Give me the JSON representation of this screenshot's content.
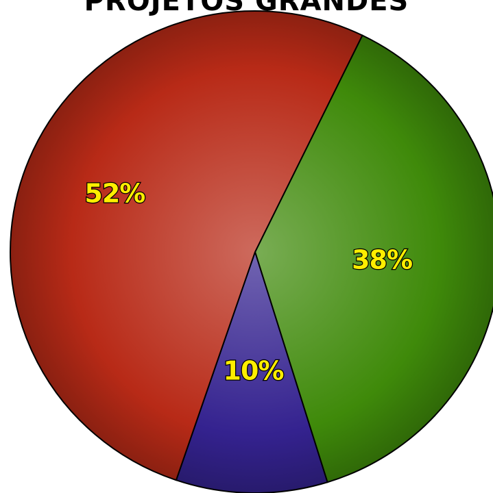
{
  "chart_data": {
    "type": "pie",
    "title": "PROJETOS GRANDES",
    "slices": [
      {
        "label": "52%",
        "value": 52,
        "color": "#b82a17"
      },
      {
        "label": "38%",
        "value": 38,
        "color": "#3f8a0a"
      },
      {
        "label": "10%",
        "value": 10,
        "color": "#34228f"
      }
    ],
    "label_color": "#ffee00",
    "legend": "none"
  }
}
